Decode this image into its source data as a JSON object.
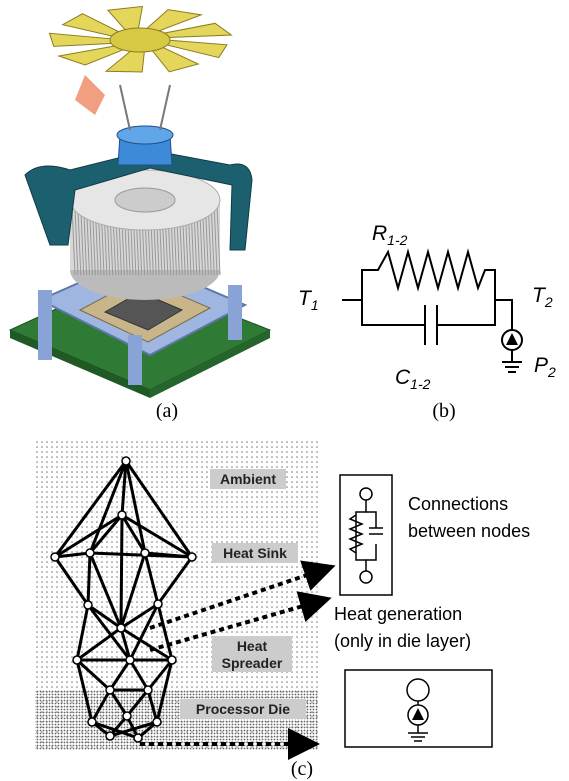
{
  "captions": [
    "(a)",
    "(b)",
    "(c)"
  ],
  "circuit": {
    "resistor": {
      "symbol": "R",
      "subscript": "1-2"
    },
    "capacitor": {
      "symbol": "C",
      "subscript": "1-2"
    },
    "node_left": {
      "symbol": "T",
      "subscript": "1"
    },
    "node_right": {
      "symbol": "T",
      "subscript": "2"
    },
    "source": {
      "symbol": "P",
      "subscript": "2"
    }
  },
  "layers": [
    [
      "Ambient"
    ],
    [
      "Heat Sink"
    ],
    [
      "Heat",
      "Spreader"
    ],
    [
      "Processor Die"
    ]
  ],
  "legend": {
    "connections": [
      "Connections",
      "between nodes"
    ],
    "heat_generation": [
      "Heat generation",
      "(only in die layer)"
    ]
  }
}
